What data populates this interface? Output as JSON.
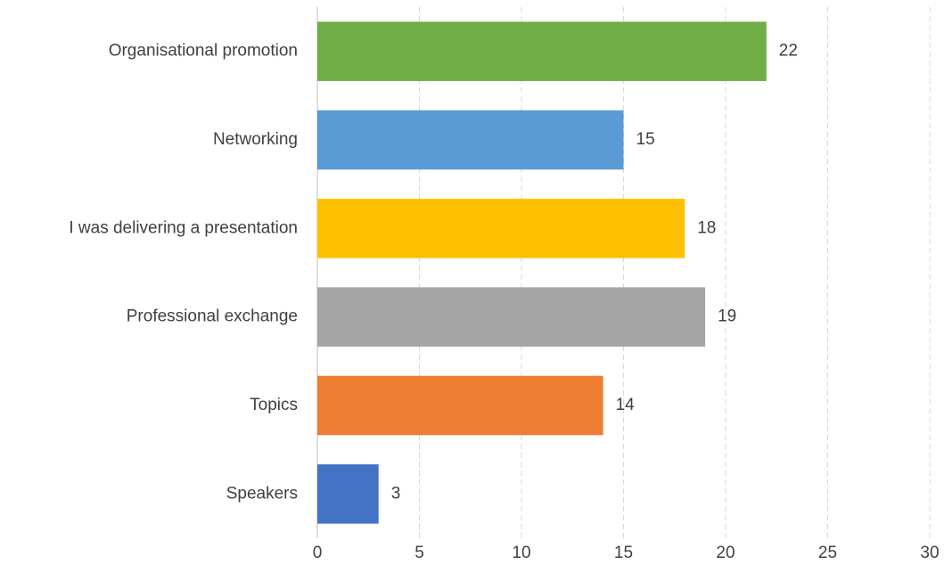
{
  "chart_data": {
    "type": "bar",
    "orientation": "horizontal",
    "categories": [
      "Organisational promotion",
      "Networking",
      "I was delivering a presentation",
      "Professional exchange",
      "Topics",
      "Speakers"
    ],
    "values": [
      22,
      15,
      18,
      19,
      14,
      3
    ],
    "colors": [
      "#70ad47",
      "#5b9bd5",
      "#ffc000",
      "#a5a5a5",
      "#ed7d31",
      "#4472c4"
    ],
    "xlim": [
      0,
      30
    ],
    "xticks": [
      0,
      5,
      10,
      15,
      20,
      25,
      30
    ],
    "grid": true,
    "data_labels": true
  }
}
